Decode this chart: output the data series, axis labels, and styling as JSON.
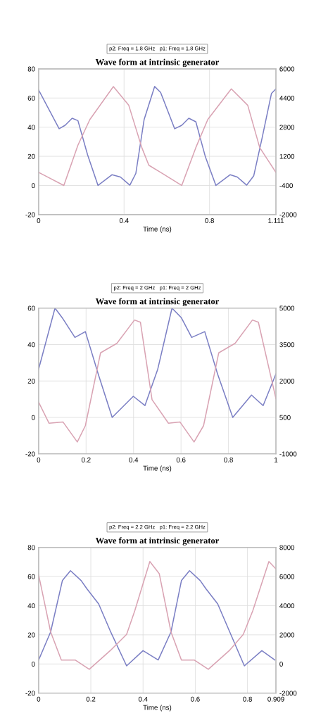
{
  "chart_data": [
    {
      "type": "line",
      "title": "Wave form at intrinsic generator",
      "xlabel": "Time (ns)",
      "annotations": [
        "p2: Freq = 1.8 GHz   p1: Freq = 1.8 GHz"
      ],
      "xlim": [
        0,
        1.111
      ],
      "xticks": [
        0,
        0.4,
        0.8,
        1.111
      ],
      "ylim": [
        -20,
        80
      ],
      "yticks": [
        -20,
        0,
        20,
        40,
        60,
        80
      ],
      "y2lim": [
        -2000,
        6000
      ],
      "y2ticks": [
        -2000,
        -400,
        1200,
        2800,
        4400,
        6000
      ],
      "grid": true,
      "line_style": "solid",
      "series": [
        {
          "color": "#7b7fc4",
          "x": [
            0,
            0.096,
            0.124,
            0.157,
            0.184,
            0.229,
            0.278,
            0.344,
            0.383,
            0.427,
            0.455,
            0.494,
            0.543,
            0.571,
            0.637,
            0.67,
            0.703,
            0.736,
            0.781,
            0.83,
            0.897,
            0.93,
            0.974,
            1.007,
            1.046,
            1.09,
            1.111
          ],
          "values": [
            65.5,
            38.9,
            41.3,
            46.1,
            44.5,
            21.1,
            0,
            7.4,
            5.8,
            0.2,
            8.2,
            45.3,
            67.9,
            63.9,
            38.9,
            41.3,
            46.1,
            43.7,
            19.5,
            0,
            7.4,
            5.8,
            0.2,
            6.6,
            32.4,
            63.1,
            66.3
          ]
        },
        {
          "color": "#d9a3b3",
          "axis": "y2",
          "x": [
            0,
            0.118,
            0.184,
            0.24,
            0.35,
            0.422,
            0.483,
            0.516,
            0.571,
            0.67,
            0.736,
            0.792,
            0.902,
            0.979,
            1.035,
            1.111
          ],
          "values": [
            320,
            -400,
            1810,
            3220,
            5030,
            4000,
            1680,
            710,
            320,
            -400,
            1680,
            3220,
            4900,
            4000,
            1680,
            320
          ]
        }
      ]
    },
    {
      "type": "line",
      "title": "Wave form at intrinsic generator",
      "xlabel": "Time (ns)",
      "annotations": [
        "p2: Freq = 2 GHz   p1: Freq = 2 GHz"
      ],
      "xlim": [
        0,
        1
      ],
      "xticks": [
        0,
        0.2,
        0.4,
        0.6,
        0.8,
        1
      ],
      "ylim": [
        -20,
        60
      ],
      "yticks": [
        -20,
        0,
        20,
        40,
        60
      ],
      "y2lim": [
        -1000,
        5000
      ],
      "y2ticks": [
        -1000,
        500,
        2000,
        3500,
        5000
      ],
      "grid": true,
      "line_style": "solid",
      "series": [
        {
          "color": "#7b7fc4",
          "x": [
            0,
            0.069,
            0.099,
            0.153,
            0.197,
            0.251,
            0.31,
            0.399,
            0.448,
            0.502,
            0.562,
            0.601,
            0.645,
            0.7,
            0.754,
            0.818,
            0.897,
            0.946,
            1.0
          ],
          "values": [
            26.5,
            60,
            54.8,
            43.9,
            47.1,
            23.9,
            0,
            11.6,
            6.5,
            26.5,
            60,
            54.8,
            43.9,
            47.1,
            23.9,
            0,
            12.3,
            6.5,
            23.9
          ]
        },
        {
          "color": "#d9a3b3",
          "axis": "y2",
          "x": [
            0,
            0.044,
            0.103,
            0.163,
            0.197,
            0.261,
            0.33,
            0.404,
            0.429,
            0.478,
            0.547,
            0.596,
            0.655,
            0.695,
            0.759,
            0.828,
            0.901,
            0.926,
            1.0
          ],
          "values": [
            1130,
            260,
            310,
            -510,
            160,
            3160,
            3550,
            4510,
            4420,
            1230,
            260,
            310,
            -510,
            160,
            3160,
            3550,
            4510,
            4420,
            1270
          ]
        }
      ]
    },
    {
      "type": "line",
      "title": "Wave form at intrinsic generator",
      "xlabel": "Time (ns)",
      "annotations": [
        "p2: Freq = 2.2 GHz   p1: Freq = 2.2 GHz"
      ],
      "xlim": [
        0,
        0.909
      ],
      "xticks": [
        0,
        0.2,
        0.4,
        0.6,
        0.8,
        0.909
      ],
      "ylim": [
        -20,
        80
      ],
      "yticks": [
        -20,
        0,
        20,
        40,
        60,
        80
      ],
      "y2lim": [
        -2000,
        8000
      ],
      "y2ticks": [
        -2000,
        0,
        2000,
        4000,
        6000,
        8000
      ],
      "grid": true,
      "line_style": "solid",
      "series": [
        {
          "color": "#7b7fc4",
          "x": [
            0,
            0.046,
            0.091,
            0.122,
            0.163,
            0.185,
            0.23,
            0.274,
            0.337,
            0.4,
            0.458,
            0.507,
            0.547,
            0.578,
            0.619,
            0.641,
            0.686,
            0.73,
            0.788,
            0.855,
            0.905
          ],
          "values": [
            2.7,
            22,
            57.2,
            64,
            57.2,
            51.6,
            41.2,
            22.8,
            -1.3,
            9.1,
            2.7,
            22,
            57.2,
            64,
            57.2,
            51.6,
            41.2,
            22.8,
            -1.3,
            9.1,
            2.7
          ]
        },
        {
          "color": "#d9a3b3",
          "axis": "y2",
          "x": [
            0,
            0.046,
            0.087,
            0.14,
            0.194,
            0.274,
            0.337,
            0.368,
            0.426,
            0.462,
            0.507,
            0.547,
            0.596,
            0.65,
            0.73,
            0.784,
            0.82,
            0.882,
            0.909
          ],
          "values": [
            6120,
            2200,
            270,
            270,
            -370,
            910,
            2030,
            3640,
            7030,
            6200,
            2200,
            270,
            270,
            -370,
            910,
            2030,
            3640,
            7030,
            6520
          ]
        }
      ]
    }
  ]
}
